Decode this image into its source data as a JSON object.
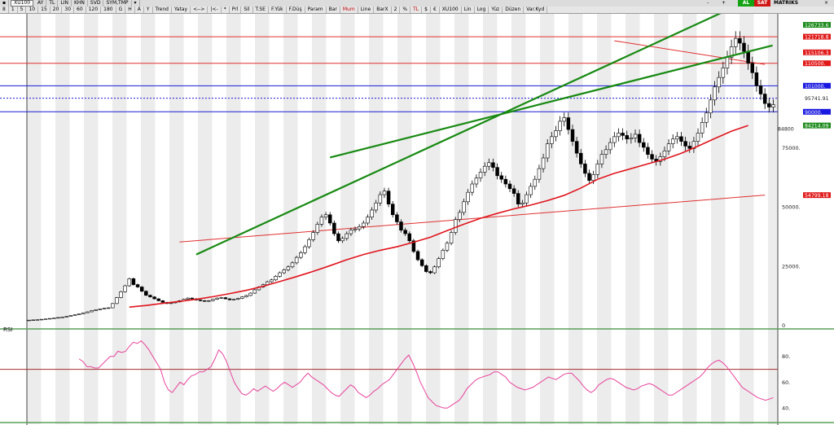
{
  "toolbar": {
    "symbol_code": "XU100",
    "items": [
      "AY",
      "TL",
      "LIN",
      "KHN",
      "SVD",
      "SYM,TMP"
    ],
    "row2": [
      "8",
      "1",
      "5",
      "10",
      "15",
      "20",
      "30",
      "60",
      "120",
      "180",
      "G",
      "H",
      "A",
      "Y",
      "Trend",
      "Yatay",
      "<-->",
      "|<-",
      "*",
      "Prl",
      "Sil",
      "T.SE",
      "F.Yük",
      "F.Düş",
      "Param",
      "Bar",
      "Mum",
      "Line",
      "BarX",
      "2",
      "%",
      "TL",
      "$",
      "€",
      "XU100",
      "Lin",
      "Log",
      "Yüz",
      "Düzen",
      "Var.Kyd"
    ],
    "row2_red": [
      "Mum",
      "TL"
    ],
    "right": {
      "zoom_minus": "-",
      "zoom_plus": "+",
      "al": "AL",
      "sat": "SAT",
      "matriks": "MATRİKS"
    }
  },
  "colors": {
    "candle_up": "#ffffff",
    "candle_down": "#000000",
    "channel": "#178a12",
    "ma": "#e0141c",
    "hline_red": "#e03030",
    "hline_blue": "#1c1cd8",
    "rsi": "#e8429b",
    "rsi_level": "#a52a2a",
    "label_red": "#e01818",
    "label_blue": "#1818e0",
    "label_green": "#1b8a1b"
  },
  "chart_data": [
    {
      "type": "candlestick",
      "symbol": "XU100",
      "ylim": [
        0,
        130000
      ],
      "yticks": [
        {
          "v": 0,
          "label": "0"
        },
        {
          "v": 25000,
          "label": "25000."
        },
        {
          "v": 50000,
          "label": "50000."
        },
        {
          "v": 75000,
          "label": "75000."
        }
      ],
      "price_labels": [
        {
          "v": 126733.6,
          "label": "126733.6",
          "style": "green"
        },
        {
          "v": 121718.8,
          "label": "121718.8",
          "style": "red"
        },
        {
          "v": 115106.3,
          "label": "115106.3",
          "style": "red"
        },
        {
          "v": 110500,
          "label": "110500.",
          "style": "red"
        },
        {
          "v": 101000,
          "label": "101000.",
          "style": "blue"
        },
        {
          "v": 95741.91,
          "label": "95741.91",
          "style": "plain"
        },
        {
          "v": 90000,
          "label": "90000.",
          "style": "blue"
        },
        {
          "v": 84214.09,
          "label": "84214.09",
          "style": "green"
        },
        {
          "v": 84800,
          "label": "84800",
          "style": "plain-offset"
        },
        {
          "v": 54799.18,
          "label": "54799.18",
          "style": "red"
        }
      ],
      "hlines": [
        {
          "v": 121718.8,
          "color": "red",
          "dash": false
        },
        {
          "v": 110500,
          "color": "red",
          "dash": false
        },
        {
          "v": 101000,
          "color": "blue",
          "dash": false
        },
        {
          "v": 95741.91,
          "color": "blue",
          "dash": true
        },
        {
          "v": 90000,
          "color": "blue",
          "dash": false
        }
      ],
      "close": [
        2000,
        2100,
        2200,
        2350,
        2500,
        2700,
        2900,
        3100,
        3300,
        3600,
        4000,
        4300,
        4700,
        5100,
        5500,
        6000,
        6400,
        6700,
        7000,
        7200,
        9000,
        11500,
        14000,
        16500,
        19500,
        17000,
        16000,
        14200,
        12500,
        11800,
        11000,
        10200,
        9500,
        9000,
        9300,
        9700,
        10200,
        10800,
        11300,
        11000,
        10500,
        10200,
        10000,
        10200,
        10800,
        11300,
        11500,
        11000,
        10600,
        10800,
        11200,
        11800,
        12400,
        13400,
        14800,
        16000,
        17000,
        18200,
        19000,
        20500,
        22000,
        23200,
        24500,
        26200,
        28500,
        30500,
        33000,
        36000,
        39000,
        42500,
        45500,
        46500,
        43000,
        38500,
        35500,
        36500,
        38500,
        40000,
        40500,
        41500,
        43000,
        45500,
        48500,
        51500,
        55000,
        56500,
        51000,
        46500,
        43500,
        40000,
        38500,
        35500,
        31000,
        27500,
        25000,
        22500,
        22000,
        24500,
        28000,
        31500,
        34500,
        39000,
        44500,
        47500,
        52000,
        56000,
        59500,
        62000,
        64500,
        67000,
        68500,
        66500,
        63000,
        61500,
        59500,
        57500,
        55500,
        51000,
        51500,
        55000,
        58500,
        61500,
        66000,
        70500,
        76500,
        79500,
        82000,
        86000,
        87500,
        82500,
        77500,
        72500,
        68000,
        64000,
        61000,
        63500,
        68000,
        72000,
        74000,
        77000,
        79500,
        81000,
        80000,
        78500,
        79000,
        80500,
        77000,
        75000,
        72000,
        70000,
        69000,
        71000,
        73500,
        76500,
        78500,
        79500,
        77500,
        75500,
        74500,
        77500,
        81000,
        85500,
        89500,
        95000,
        100500,
        104500,
        108500,
        113000,
        117500,
        121000,
        119000,
        115500,
        110500,
        106500,
        101000,
        97500,
        93500,
        92000,
        93000
      ],
      "ma": {
        "start_x": 6,
        "values": [
          7500,
          8200,
          9100,
          9900,
          10800,
          11900,
          13200,
          14600,
          16300,
          18300,
          20400,
          22600,
          25000,
          27500,
          29700,
          31500,
          33000,
          34900,
          37000,
          39800,
          42500,
          45000,
          47100,
          49000,
          50600,
          52500,
          54700,
          57800,
          61500,
          64000,
          66000,
          68000,
          70000,
          72500,
          75500,
          78700,
          81800,
          84200
        ]
      },
      "channel_lines": [
        {
          "from": [
            18,
            26000
          ],
          "to": [
            43,
            63000
          ]
        },
        {
          "from": [
            10,
            -15000
          ],
          "to": [
            44,
            90000
          ]
        }
      ],
      "trend_lines": [
        {
          "from": [
            35,
            120000
          ],
          "to": [
            44,
            110000
          ]
        },
        {
          "from": [
            9,
            35000
          ],
          "to": [
            44,
            54799.18
          ]
        }
      ]
    },
    {
      "type": "line",
      "title": "RSI",
      "ylim": [
        30,
        100
      ],
      "yticks": [
        {
          "v": 40,
          "label": "40."
        },
        {
          "v": 60,
          "label": "60."
        },
        {
          "v": 80,
          "label": "80."
        }
      ],
      "level": 70,
      "values": [
        78,
        76,
        72,
        72,
        71,
        71,
        74,
        77,
        80,
        80,
        84,
        83,
        84,
        88,
        91,
        90,
        92,
        89,
        85,
        80,
        75,
        70,
        60,
        54,
        52,
        56,
        60,
        58,
        62,
        65,
        66,
        68,
        68,
        70,
        72,
        78,
        85,
        82,
        76,
        68,
        60,
        55,
        51,
        50,
        52,
        55,
        53,
        55,
        57,
        55,
        53,
        55,
        58,
        60,
        58,
        56,
        58,
        60,
        64,
        67,
        64,
        62,
        60,
        58,
        55,
        52,
        50,
        49,
        52,
        55,
        58,
        56,
        52,
        50,
        48,
        50,
        53,
        55,
        58,
        60,
        62,
        66,
        70,
        74,
        78,
        81,
        75,
        68,
        60,
        54,
        48,
        45,
        42,
        41,
        40,
        40,
        42,
        44,
        46,
        50,
        55,
        58,
        61,
        63,
        64,
        65,
        66,
        68,
        68,
        66,
        64,
        60,
        58,
        56,
        55,
        54,
        55,
        56,
        58,
        60,
        62,
        64,
        63,
        62,
        64,
        66,
        67,
        67,
        64,
        61,
        57,
        54,
        52,
        54,
        58,
        60,
        62,
        63,
        62,
        60,
        58,
        56,
        55,
        54,
        55,
        57,
        58,
        59,
        58,
        56,
        54,
        52,
        50,
        50,
        52,
        54,
        56,
        58,
        60,
        62,
        64,
        67,
        71,
        74,
        76,
        77,
        75,
        72,
        68,
        64,
        60,
        56,
        54,
        52,
        50,
        48,
        47,
        46,
        47,
        48
      ]
    }
  ]
}
